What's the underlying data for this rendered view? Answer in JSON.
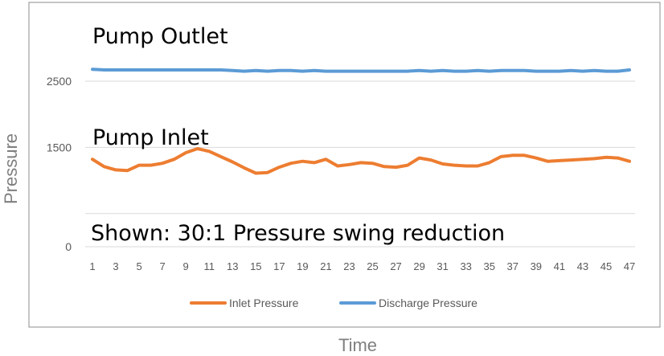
{
  "chart_data": {
    "type": "line",
    "xlabel": "Time",
    "ylabel": "Pressure",
    "ylim": [
      0,
      3200
    ],
    "yticks": [
      "0",
      "1500",
      "2500"
    ],
    "ytick_values": [
      0,
      1500,
      2500
    ],
    "gridlines_at": [
      0,
      500,
      1500,
      2500
    ],
    "x": [
      1,
      2,
      3,
      4,
      5,
      6,
      7,
      8,
      9,
      10,
      11,
      12,
      13,
      14,
      15,
      16,
      17,
      18,
      19,
      20,
      21,
      22,
      23,
      24,
      25,
      26,
      27,
      28,
      29,
      30,
      31,
      32,
      33,
      34,
      35,
      36,
      37,
      38,
      39,
      40,
      41,
      42,
      43,
      44,
      45,
      46,
      47
    ],
    "xtick_labels": [
      "1",
      "3",
      "5",
      "7",
      "9",
      "11",
      "13",
      "15",
      "17",
      "19",
      "21",
      "23",
      "25",
      "27",
      "29",
      "31",
      "33",
      "35",
      "37",
      "39",
      "41",
      "43",
      "45",
      "47"
    ],
    "legend_position": "bottom",
    "series": [
      {
        "name": "Inlet Pressure",
        "color": "#ed7d31",
        "values": [
          1320,
          1210,
          1160,
          1150,
          1230,
          1230,
          1260,
          1320,
          1420,
          1480,
          1440,
          1360,
          1280,
          1190,
          1110,
          1120,
          1200,
          1260,
          1290,
          1270,
          1320,
          1220,
          1240,
          1270,
          1260,
          1210,
          1200,
          1230,
          1340,
          1310,
          1250,
          1230,
          1220,
          1220,
          1270,
          1360,
          1380,
          1380,
          1340,
          1290,
          1300,
          1310,
          1320,
          1330,
          1350,
          1340,
          1290
        ],
        "marks": []
      },
      {
        "name": "Discharge Pressure",
        "color": "#5b9bd5",
        "values": [
          2680,
          2670,
          2670,
          2670,
          2670,
          2670,
          2670,
          2670,
          2670,
          2670,
          2670,
          2670,
          2660,
          2650,
          2660,
          2650,
          2660,
          2660,
          2650,
          2660,
          2650,
          2650,
          2650,
          2650,
          2650,
          2650,
          2650,
          2650,
          2660,
          2650,
          2660,
          2650,
          2650,
          2660,
          2650,
          2660,
          2660,
          2660,
          2650,
          2650,
          2650,
          2660,
          2650,
          2660,
          2650,
          2650,
          2670
        ],
        "marks": []
      }
    ],
    "annotations": [
      {
        "text": "Pump Outlet"
      },
      {
        "text": "Pump Inlet"
      },
      {
        "text": "Shown: 30:1 Pressure swing reduction"
      }
    ]
  }
}
